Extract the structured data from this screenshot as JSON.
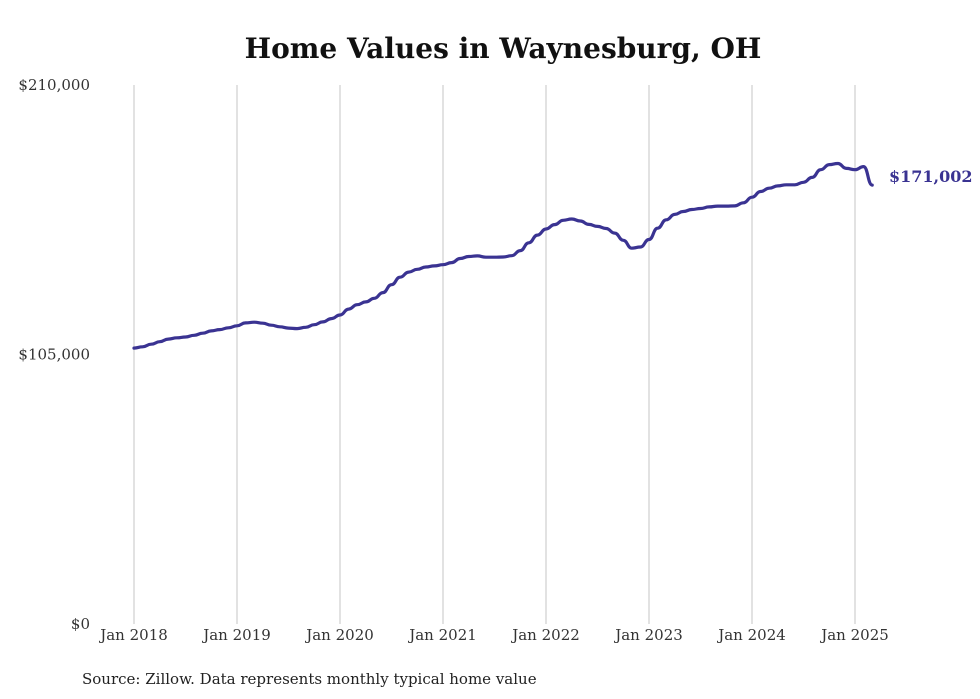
{
  "chart_data": {
    "type": "line",
    "title": "Home Values in Waynesburg, OH",
    "xlabel": "",
    "ylabel": "",
    "source": "Source: Zillow. Data represents monthly typical home value",
    "ylim": [
      0,
      210000
    ],
    "y_ticks": [
      {
        "value": 0,
        "label": "$0"
      },
      {
        "value": 105000,
        "label": "$105,000"
      },
      {
        "value": 210000,
        "label": "$210,000"
      }
    ],
    "x_ticks": [
      {
        "value": "2018-01",
        "label": "Jan 2018"
      },
      {
        "value": "2019-01",
        "label": "Jan 2019"
      },
      {
        "value": "2020-01",
        "label": "Jan 2020"
      },
      {
        "value": "2021-01",
        "label": "Jan 2021"
      },
      {
        "value": "2022-01",
        "label": "Jan 2022"
      },
      {
        "value": "2023-01",
        "label": "Jan 2023"
      },
      {
        "value": "2024-01",
        "label": "Jan 2024"
      },
      {
        "value": "2025-01",
        "label": "Jan 2025"
      }
    ],
    "grid": "vertical",
    "line_color": "#3a3392",
    "end_label": "$171,002",
    "series": [
      {
        "name": "",
        "x": [
          "2018-01",
          "2018-02",
          "2018-03",
          "2018-04",
          "2018-05",
          "2018-06",
          "2018-07",
          "2018-08",
          "2018-09",
          "2018-10",
          "2018-11",
          "2018-12",
          "2019-01",
          "2019-02",
          "2019-03",
          "2019-04",
          "2019-05",
          "2019-06",
          "2019-07",
          "2019-08",
          "2019-09",
          "2019-10",
          "2019-11",
          "2019-12",
          "2020-01",
          "2020-02",
          "2020-03",
          "2020-04",
          "2020-05",
          "2020-06",
          "2020-07",
          "2020-08",
          "2020-09",
          "2020-10",
          "2020-11",
          "2020-12",
          "2021-01",
          "2021-02",
          "2021-03",
          "2021-04",
          "2021-05",
          "2021-06",
          "2021-07",
          "2021-08",
          "2021-09",
          "2021-10",
          "2021-11",
          "2021-12",
          "2022-01",
          "2022-02",
          "2022-03",
          "2022-04",
          "2022-05",
          "2022-06",
          "2022-07",
          "2022-08",
          "2022-09",
          "2022-10",
          "2022-11",
          "2022-12",
          "2023-01",
          "2023-02",
          "2023-03",
          "2023-04",
          "2023-05",
          "2023-06",
          "2023-07",
          "2023-08",
          "2023-09",
          "2023-10",
          "2023-11",
          "2023-12",
          "2024-01",
          "2024-02",
          "2024-03",
          "2024-04",
          "2024-05",
          "2024-06",
          "2024-07",
          "2024-08",
          "2024-09",
          "2024-10",
          "2024-11",
          "2024-12",
          "2025-01",
          "2025-02",
          "2025-03"
        ],
        "values": [
          107500,
          108000,
          109000,
          110000,
          111000,
          111500,
          111800,
          112500,
          113300,
          114200,
          114700,
          115400,
          116200,
          117300,
          117600,
          117200,
          116400,
          115800,
          115300,
          115100,
          115600,
          116600,
          117700,
          119000,
          120400,
          122700,
          124400,
          125500,
          126900,
          129100,
          132200,
          135100,
          137100,
          138200,
          139100,
          139500,
          140000,
          140800,
          142400,
          143200,
          143400,
          142900,
          142900,
          143000,
          143500,
          145500,
          148500,
          151500,
          153900,
          155600,
          157300,
          157800,
          157000,
          155700,
          154900,
          154100,
          152300,
          149500,
          146400,
          146900,
          149800,
          154200,
          157500,
          159600,
          160700,
          161500,
          161900,
          162500,
          162800,
          162800,
          162900,
          164100,
          166300,
          168500,
          169800,
          170700,
          171100,
          171100,
          172100,
          174000,
          177000,
          179000,
          179400,
          177500,
          177000,
          178200,
          171002
        ],
        "note_unused": ""
      }
    ]
  }
}
